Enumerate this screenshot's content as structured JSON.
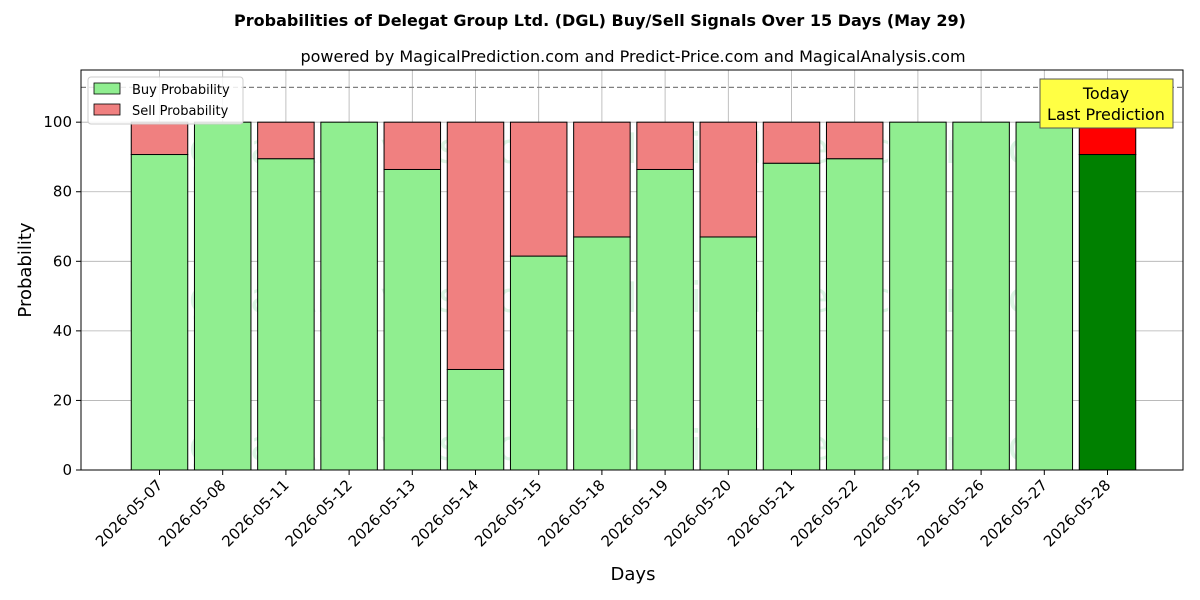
{
  "chart_data": {
    "type": "bar",
    "stacked": true,
    "title": "Probabilities of Delegat Group Ltd. (DGL) Buy/Sell Signals Over 15 Days (May 29)",
    "subtitle": "powered by MagicalPrediction.com and Predict-Price.com and MagicalAnalysis.com",
    "xlabel": "Days",
    "ylabel": "Probability",
    "ylim": [
      0,
      115
    ],
    "yticks": [
      0,
      20,
      40,
      60,
      80,
      100
    ],
    "grid": true,
    "legend_position": "top-left",
    "reference_line": {
      "y": 110,
      "style": "dashed"
    },
    "categories": [
      "2026-05-07",
      "2026-05-08",
      "2026-05-11",
      "2026-05-12",
      "2026-05-13",
      "2026-05-14",
      "2026-05-15",
      "2026-05-18",
      "2026-05-19",
      "2026-05-20",
      "2026-05-21",
      "2026-05-22",
      "2026-05-25",
      "2026-05-26",
      "2026-05-27",
      "2026-05-28"
    ],
    "series": [
      {
        "name": "Buy Probability",
        "color": "#90ee90",
        "values": [
          90.7,
          100,
          89.5,
          100,
          86.4,
          28.9,
          61.5,
          67,
          86.4,
          67,
          88.2,
          89.5,
          100,
          100,
          100,
          90.7
        ]
      },
      {
        "name": "Sell Probability",
        "color": "#f08080",
        "values": [
          9.3,
          0,
          10.5,
          0,
          13.6,
          71.1,
          38.5,
          33,
          13.6,
          33,
          11.8,
          10.5,
          0,
          0,
          0,
          9.3
        ]
      }
    ],
    "highlight": {
      "index": 15,
      "buy_color": "#008000",
      "sell_color": "#ff0000"
    },
    "annotation": {
      "lines": [
        "Today",
        "Last Prediction"
      ],
      "background": "#ffff44"
    },
    "watermarks": [
      "MagicalAnalysis.com",
      "MagicalPrediction.com"
    ]
  }
}
